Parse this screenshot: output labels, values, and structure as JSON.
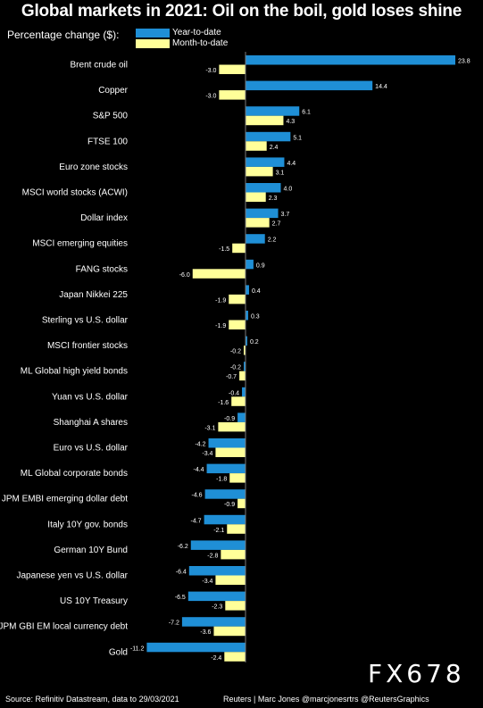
{
  "colors": {
    "ytd": "#1f8fd6",
    "mtd": "#ffff99",
    "background": "#000000",
    "text": "#ffffff"
  },
  "chart_data": {
    "type": "bar",
    "orientation": "horizontal",
    "title": "Global markets in 2021: Oil on the boil, gold loses shine",
    "subtitle": "Percentage change ($):",
    "categories": [
      "Brent crude oil",
      "Copper",
      "S&P 500",
      "FTSE 100",
      "Euro zone stocks",
      "MSCI world stocks (ACWI)",
      "Dollar index",
      "MSCI emerging equities",
      "FANG stocks",
      "Japan Nikkei 225",
      "Sterling vs U.S. dollar",
      "MSCI frontier stocks",
      "ML Global high yield bonds",
      "Yuan vs U.S. dollar",
      "Shanghai A shares",
      "Euro vs U.S. dollar",
      "ML Global corporate bonds",
      "JPM EMBI emerging dollar debt",
      "Italy 10Y gov. bonds",
      "German 10Y Bund",
      "Japanese yen vs U.S. dollar",
      "US 10Y Treasury",
      "JPM GBI EM local currency debt",
      "Gold"
    ],
    "series": [
      {
        "name": "Year-to-date",
        "values": [
          23.8,
          14.4,
          6.1,
          5.1,
          4.4,
          4.0,
          3.7,
          2.2,
          0.9,
          0.4,
          0.3,
          0.2,
          -0.2,
          -0.4,
          -0.9,
          -4.2,
          -4.4,
          -4.6,
          -4.7,
          -6.2,
          -6.4,
          -6.5,
          -7.2,
          -11.2
        ]
      },
      {
        "name": "Month-to-date",
        "values": [
          -3.0,
          -3.0,
          4.3,
          2.4,
          3.1,
          2.3,
          2.7,
          -1.5,
          -6.0,
          -1.9,
          -1.9,
          -0.2,
          -0.7,
          -1.6,
          -3.1,
          -3.4,
          -1.8,
          -0.9,
          -2.1,
          -2.8,
          -3.4,
          -2.3,
          -3.6,
          -2.4
        ]
      }
    ],
    "xlim": [
      -11.2,
      23.8
    ],
    "grid": false,
    "legend": "top-left"
  },
  "footer": {
    "source": "Source: Refinitiv Datastream, data to 29/03/2021",
    "credit": "Reuters | Marc Jones @marcjonesrtrs @ReutersGraphics"
  },
  "watermark": "FX678"
}
